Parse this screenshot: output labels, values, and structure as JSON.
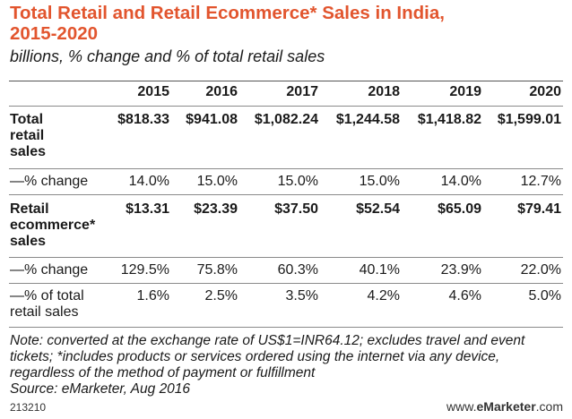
{
  "chart_data": {
    "type": "table",
    "title": "Total Retail and Retail Ecommerce* Sales in India, 2015-2020",
    "subtitle": "billions, % change and % of total retail sales",
    "columns": [
      "2015",
      "2016",
      "2017",
      "2018",
      "2019",
      "2020"
    ],
    "rows": [
      {
        "label": "Total retail sales",
        "bold": true,
        "values": [
          "$818.33",
          "$941.08",
          "$1,082.24",
          "$1,244.58",
          "$1,418.82",
          "$1,599.01"
        ]
      },
      {
        "label": "—% change",
        "bold": false,
        "values": [
          "14.0%",
          "15.0%",
          "15.0%",
          "15.0%",
          "14.0%",
          "12.7%"
        ]
      },
      {
        "label": "Retail ecommerce* sales",
        "bold": true,
        "values": [
          "$13.31",
          "$23.39",
          "$37.50",
          "$52.54",
          "$65.09",
          "$79.41"
        ]
      },
      {
        "label": "—% change",
        "bold": false,
        "values": [
          "129.5%",
          "75.8%",
          "60.3%",
          "40.1%",
          "23.9%",
          "22.0%"
        ]
      },
      {
        "label": "—% of total retail sales",
        "bold": false,
        "values": [
          "1.6%",
          "2.5%",
          "3.5%",
          "4.2%",
          "4.6%",
          "5.0%"
        ]
      }
    ],
    "note": "Note: converted at the exchange rate of US$1=INR64.12; excludes travel and event tickets; *includes products or services ordered using the internet via any device, regardless of the method of payment or fulfillment",
    "source": "Source: eMarketer, Aug 2016"
  },
  "footer": {
    "id": "213210",
    "site_prefix": "www.",
    "site_brand": "eMarketer",
    "site_suffix": ".com"
  }
}
